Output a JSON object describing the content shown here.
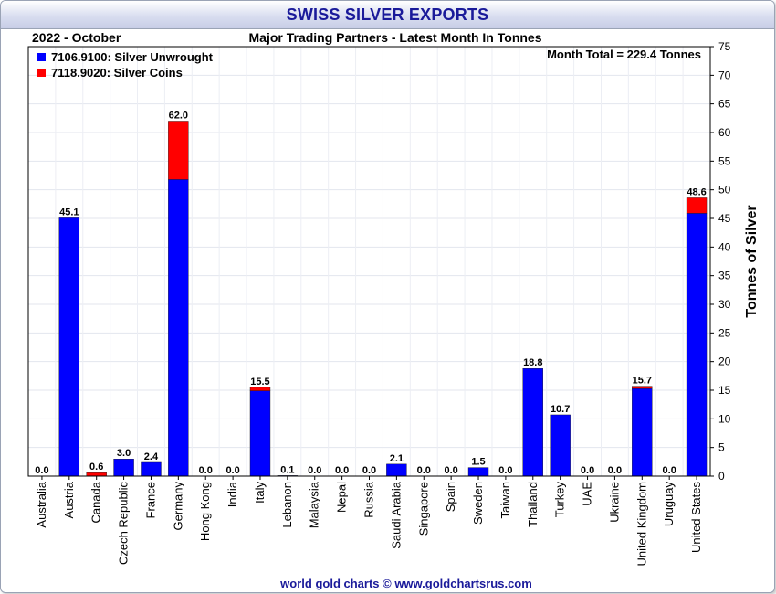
{
  "title": "SWISS SILVER EXPORTS",
  "period": "2022 - October",
  "subtitle": "Major Trading Partners - Latest Month In Tonnes",
  "month_total": "Month Total = 229.4 Tonnes",
  "footer": "world gold charts © www.goldchartsrus.com",
  "colors": {
    "unwrought": "#0000ff",
    "coins": "#ff0000",
    "title": "#1a1a9a"
  },
  "chart_data": {
    "type": "bar",
    "stacked": true,
    "ylabel": "Tonnes of Silver",
    "ylim": [
      0,
      75
    ],
    "ytick_step": 5,
    "y_axis_side": "right",
    "grid": true,
    "legend_position": "top-left",
    "categories": [
      "Australia",
      "Austria",
      "Canada",
      "Czech Republic",
      "France",
      "Germany",
      "Hong Kong",
      "India",
      "Italy",
      "Lebanon",
      "Malaysia",
      "Nepal",
      "Russia",
      "Saudi Arabia",
      "Singapore",
      "Spain",
      "Sweden",
      "Taiwan",
      "Thailand",
      "Turkey",
      "UAE",
      "Ukraine",
      "United Kingdom",
      "Uruguay",
      "United States"
    ],
    "series": [
      {
        "name": "7106.9100: Silver Unwrought",
        "color": "#0000ff",
        "values": [
          0.0,
          45.1,
          0.0,
          3.0,
          2.4,
          51.8,
          0.0,
          0.0,
          14.9,
          0.1,
          0.0,
          0.0,
          0.0,
          2.1,
          0.0,
          0.0,
          1.5,
          0.0,
          18.8,
          10.7,
          0.0,
          0.0,
          15.3,
          0.0,
          45.9
        ]
      },
      {
        "name": "7118.9020: Silver Coins",
        "color": "#ff0000",
        "values": [
          0.0,
          0.0,
          0.6,
          0.0,
          0.0,
          10.2,
          0.0,
          0.0,
          0.6,
          0.0,
          0.0,
          0.0,
          0.0,
          0.0,
          0.0,
          0.0,
          0.0,
          0.0,
          0.0,
          0.0,
          0.0,
          0.0,
          0.4,
          0.0,
          2.7
        ]
      }
    ],
    "totals": [
      "0.0",
      "45.1",
      "0.6",
      "3.0",
      "2.4",
      "62.0",
      "0.0",
      "0.0",
      "15.5",
      "0.1",
      "0.0",
      "0.0",
      "0.0",
      "2.1",
      "0.0",
      "0.0",
      "1.5",
      "0.0",
      "18.8",
      "10.7",
      "0.0",
      "0.0",
      "15.7",
      "0.0",
      "48.6"
    ]
  }
}
